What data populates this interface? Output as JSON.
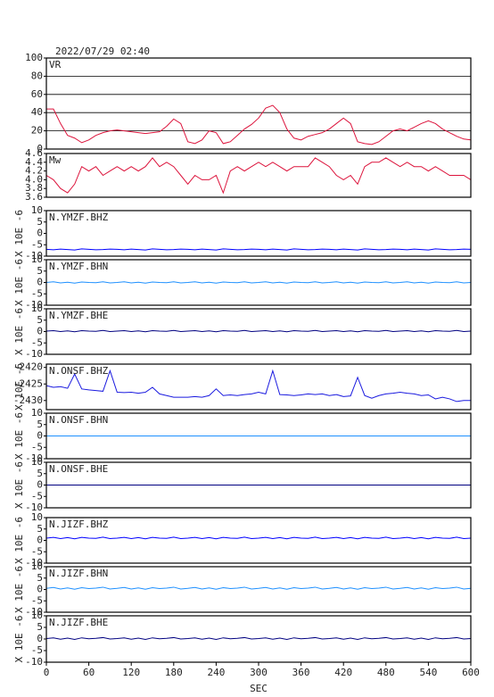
{
  "chart_data": [
    {
      "type": "line",
      "title": "2022/07/29 02:40",
      "label": "VR",
      "color": "#dc143c",
      "grid": true,
      "ylim": [
        0,
        100
      ],
      "yticks": [
        0,
        20,
        40,
        60,
        80,
        100
      ],
      "xlim": [
        0,
        600
      ],
      "x": [
        0,
        10,
        20,
        30,
        40,
        50,
        60,
        70,
        80,
        90,
        100,
        110,
        120,
        130,
        140,
        150,
        160,
        170,
        180,
        190,
        200,
        210,
        220,
        230,
        240,
        250,
        260,
        270,
        280,
        290,
        300,
        310,
        320,
        330,
        340,
        350,
        360,
        370,
        380,
        390,
        400,
        410,
        420,
        430,
        440,
        450,
        460,
        470,
        480,
        490,
        500,
        510,
        520,
        530,
        540,
        550,
        560,
        570,
        580,
        590,
        600
      ],
      "values": [
        44,
        44,
        28,
        15,
        12,
        7,
        10,
        15,
        18,
        20,
        21,
        20,
        19,
        18,
        17,
        18,
        19,
        25,
        33,
        28,
        8,
        6,
        10,
        20,
        18,
        6,
        8,
        15,
        22,
        27,
        34,
        45,
        48,
        40,
        22,
        12,
        10,
        14,
        16,
        18,
        22,
        28,
        34,
        28,
        8,
        6,
        5,
        8,
        14,
        20,
        22,
        20,
        24,
        28,
        31,
        28,
        22,
        18,
        14,
        11,
        10
      ]
    },
    {
      "type": "line",
      "label": "Mw",
      "color": "#dc143c",
      "grid": false,
      "ylim": [
        3.6,
        4.6
      ],
      "yticks": [
        3.6,
        3.8,
        {
          "value": 4,
          "label": "4.0"
        },
        4.2,
        4.4,
        4.6
      ],
      "xlim": [
        0,
        600
      ],
      "x": [
        0,
        10,
        20,
        30,
        40,
        50,
        60,
        70,
        80,
        90,
        100,
        110,
        120,
        130,
        140,
        150,
        160,
        170,
        180,
        190,
        200,
        210,
        220,
        230,
        240,
        250,
        260,
        270,
        280,
        290,
        300,
        310,
        320,
        330,
        340,
        350,
        360,
        370,
        380,
        390,
        400,
        410,
        420,
        430,
        440,
        450,
        460,
        470,
        480,
        490,
        500,
        510,
        520,
        530,
        540,
        550,
        560,
        570,
        580,
        590,
        600
      ],
      "values": [
        4.1,
        4.0,
        3.8,
        3.7,
        3.9,
        4.3,
        4.2,
        4.3,
        4.1,
        4.2,
        4.3,
        4.2,
        4.3,
        4.2,
        4.3,
        4.5,
        4.3,
        4.4,
        4.3,
        4.1,
        3.9,
        4.1,
        4.0,
        4.0,
        4.1,
        3.7,
        4.2,
        4.3,
        4.2,
        4.3,
        4.4,
        4.3,
        4.4,
        4.3,
        4.2,
        4.3,
        4.3,
        4.3,
        4.5,
        4.4,
        4.3,
        4.1,
        4.0,
        4.1,
        3.9,
        4.3,
        4.4,
        4.4,
        4.5,
        4.4,
        4.3,
        4.4,
        4.3,
        4.3,
        4.2,
        4.3,
        4.2,
        4.1,
        4.1,
        4.1,
        4.0
      ]
    },
    {
      "type": "line",
      "label": "N.YMZF.BHZ",
      "ylabel": "X 10E -6",
      "color": "#0000ff",
      "ylim": [
        -10,
        10
      ],
      "yticks": [
        -10,
        -5,
        0,
        5,
        10
      ],
      "xlim": [
        0,
        600
      ],
      "x": [
        0,
        10,
        20,
        30,
        40,
        50,
        60,
        70,
        80,
        90,
        100,
        110,
        120,
        130,
        140,
        150,
        160,
        170,
        180,
        190,
        200,
        210,
        220,
        230,
        240,
        250,
        260,
        270,
        280,
        290,
        300,
        310,
        320,
        330,
        340,
        350,
        360,
        370,
        380,
        390,
        400,
        410,
        420,
        430,
        440,
        450,
        460,
        470,
        480,
        490,
        500,
        510,
        520,
        530,
        540,
        550,
        560,
        570,
        580,
        590,
        600
      ],
      "values": [
        -7,
        -7.2,
        -6.9,
        -7.1,
        -7.3,
        -6.8,
        -7,
        -7.2,
        -7.1,
        -6.9,
        -7,
        -7.2,
        -6.9,
        -7.1,
        -7.3,
        -6.8,
        -7,
        -7.2,
        -7.1,
        -6.9,
        -7,
        -7.2,
        -6.9,
        -7.1,
        -7.3,
        -6.8,
        -7,
        -7.2,
        -7.1,
        -6.9,
        -7,
        -7.2,
        -6.9,
        -7.1,
        -7.3,
        -6.8,
        -7,
        -7.2,
        -7.1,
        -6.9,
        -7,
        -7.2,
        -6.9,
        -7.1,
        -7.3,
        -6.8,
        -7,
        -7.2,
        -7.1,
        -6.9,
        -7,
        -7.2,
        -6.9,
        -7.1,
        -7.3,
        -6.8,
        -7,
        -7.2,
        -7.1,
        -6.9,
        -7
      ]
    },
    {
      "type": "line",
      "label": "N.YMZF.BHN",
      "ylabel": "X 10E -6",
      "color": "#1e90ff",
      "ylim": [
        -10,
        10
      ],
      "yticks": [
        -10,
        -5,
        0,
        5,
        10
      ],
      "xlim": [
        0,
        600
      ],
      "x": [
        0,
        10,
        20,
        30,
        40,
        50,
        60,
        70,
        80,
        90,
        100,
        110,
        120,
        130,
        140,
        150,
        160,
        170,
        180,
        190,
        200,
        210,
        220,
        230,
        240,
        250,
        260,
        270,
        280,
        290,
        300,
        310,
        320,
        330,
        340,
        350,
        360,
        370,
        380,
        390,
        400,
        410,
        420,
        430,
        440,
        450,
        460,
        470,
        480,
        490,
        500,
        510,
        520,
        530,
        540,
        550,
        560,
        570,
        580,
        590,
        600
      ],
      "values": [
        0,
        0.3,
        -0.2,
        0.1,
        -0.3,
        0.2,
        0,
        -0.1,
        0.3,
        -0.2,
        0,
        0.3,
        -0.2,
        0.1,
        -0.3,
        0.2,
        0,
        -0.1,
        0.3,
        -0.2,
        0,
        0.3,
        -0.2,
        0.1,
        -0.3,
        0.2,
        0,
        -0.1,
        0.3,
        -0.2,
        0,
        0.3,
        -0.2,
        0.1,
        -0.3,
        0.2,
        0,
        -0.1,
        0.3,
        -0.2,
        0,
        0.3,
        -0.2,
        0.1,
        -0.3,
        0.2,
        0,
        -0.1,
        0.3,
        -0.2,
        0,
        0.3,
        -0.2,
        0.1,
        -0.3,
        0.2,
        0,
        -0.1,
        0.3,
        -0.2,
        0
      ]
    },
    {
      "type": "line",
      "label": "N.YMZF.BHE",
      "ylabel": "X 10E -6",
      "color": "#000080",
      "ylim": [
        -10,
        10
      ],
      "yticks": [
        -10,
        -5,
        0,
        5,
        10
      ],
      "xlim": [
        0,
        600
      ],
      "x": [
        0,
        10,
        20,
        30,
        40,
        50,
        60,
        70,
        80,
        90,
        100,
        110,
        120,
        130,
        140,
        150,
        160,
        170,
        180,
        190,
        200,
        210,
        220,
        230,
        240,
        250,
        260,
        270,
        280,
        290,
        300,
        310,
        320,
        330,
        340,
        350,
        360,
        370,
        380,
        390,
        400,
        410,
        420,
        430,
        440,
        450,
        460,
        470,
        480,
        490,
        500,
        510,
        520,
        530,
        540,
        550,
        560,
        570,
        580,
        590,
        600
      ],
      "values": [
        0.2,
        0.4,
        0,
        0.3,
        -0.1,
        0.4,
        0.2,
        0.1,
        0.5,
        0,
        0.2,
        0.4,
        0,
        0.3,
        -0.1,
        0.4,
        0.2,
        0.1,
        0.5,
        0,
        0.2,
        0.4,
        0,
        0.3,
        -0.1,
        0.4,
        0.2,
        0.1,
        0.5,
        0,
        0.2,
        0.4,
        0,
        0.3,
        -0.1,
        0.4,
        0.2,
        0.1,
        0.5,
        0,
        0.2,
        0.4,
        0,
        0.3,
        -0.1,
        0.4,
        0.2,
        0.1,
        0.5,
        0,
        0.2,
        0.4,
        0,
        0.3,
        -0.1,
        0.4,
        0.2,
        0.1,
        0.5,
        0,
        0.2
      ]
    },
    {
      "type": "line",
      "label": "N.ONSF.BHZ",
      "ylabel": "X 10E -6",
      "color": "#1a1adf",
      "ylim": [
        -2432.75,
        -2419
      ],
      "yticks": [
        -2430,
        -2425,
        -2420
      ],
      "xlim": [
        0,
        600
      ],
      "x": [
        0,
        10,
        20,
        30,
        40,
        50,
        60,
        70,
        80,
        90,
        100,
        110,
        120,
        130,
        140,
        150,
        160,
        170,
        180,
        190,
        200,
        210,
        220,
        230,
        240,
        250,
        260,
        270,
        280,
        290,
        300,
        310,
        320,
        330,
        340,
        350,
        360,
        370,
        380,
        390,
        400,
        410,
        420,
        430,
        440,
        450,
        460,
        470,
        480,
        490,
        500,
        510,
        520,
        530,
        540,
        550,
        560,
        570,
        580,
        590,
        600
      ],
      "values": [
        -2425.5,
        -2426,
        -2425.8,
        -2426.3,
        -2422,
        -2426.5,
        -2426.8,
        -2427,
        -2427.2,
        -2421,
        -2427.5,
        -2427.6,
        -2427.5,
        -2427.8,
        -2427.5,
        -2426,
        -2428,
        -2428.5,
        -2429,
        -2429,
        -2429,
        -2428.8,
        -2429,
        -2428.5,
        -2426.5,
        -2428.5,
        -2428.3,
        -2428.5,
        -2428.2,
        -2428,
        -2427.5,
        -2428,
        -2421,
        -2428.2,
        -2428.3,
        -2428.5,
        -2428.3,
        -2428,
        -2428.2,
        -2428,
        -2428.5,
        -2428.2,
        -2428.8,
        -2428.6,
        -2423,
        -2428.5,
        -2429.3,
        -2428.5,
        -2428,
        -2427.8,
        -2427.5,
        -2427.8,
        -2428,
        -2428.5,
        -2428.3,
        -2429.5,
        -2429,
        -2429.5,
        -2430.3,
        -2430,
        -2430
      ]
    },
    {
      "type": "line",
      "label": "N.ONSF.BHN",
      "ylabel": "X 10E -6",
      "color": "#1e90ff",
      "ylim": [
        -10,
        10
      ],
      "yticks": [
        -10,
        -5,
        0,
        5,
        10
      ],
      "xlim": [
        0,
        600
      ],
      "x": [
        0,
        600
      ],
      "values": [
        0,
        0
      ]
    },
    {
      "type": "line",
      "label": "N.ONSF.BHE",
      "ylabel": "X 10E -6",
      "color": "#000080",
      "ylim": [
        -10,
        10
      ],
      "yticks": [
        -10,
        -5,
        0,
        5,
        10
      ],
      "xlim": [
        0,
        600
      ],
      "x": [
        0,
        600
      ],
      "values": [
        0,
        0
      ]
    },
    {
      "type": "line",
      "label": "N.JIZF.BHZ",
      "ylabel": "X 10E -6",
      "color": "#0000ff",
      "ylim": [
        -10,
        10
      ],
      "yticks": [
        -10,
        -5,
        0,
        5,
        10
      ],
      "xlim": [
        0,
        600
      ],
      "x": [
        0,
        10,
        20,
        30,
        40,
        50,
        60,
        70,
        80,
        90,
        100,
        110,
        120,
        130,
        140,
        150,
        160,
        170,
        180,
        190,
        200,
        210,
        220,
        230,
        240,
        250,
        260,
        270,
        280,
        290,
        300,
        310,
        320,
        330,
        340,
        350,
        360,
        370,
        380,
        390,
        400,
        410,
        420,
        430,
        440,
        450,
        460,
        470,
        480,
        490,
        500,
        510,
        520,
        530,
        540,
        550,
        560,
        570,
        580,
        590,
        600
      ],
      "values": [
        1,
        1.3,
        0.8,
        1.2,
        0.7,
        1.3,
        1,
        0.9,
        1.4,
        0.8,
        1,
        1.3,
        0.8,
        1.2,
        0.7,
        1.3,
        1,
        0.9,
        1.4,
        0.8,
        1,
        1.3,
        0.8,
        1.2,
        0.7,
        1.3,
        1,
        0.9,
        1.4,
        0.8,
        1,
        1.3,
        0.8,
        1.2,
        0.7,
        1.3,
        1,
        0.9,
        1.4,
        0.8,
        1,
        1.3,
        0.8,
        1.2,
        0.7,
        1.3,
        1,
        0.9,
        1.4,
        0.8,
        1,
        1.3,
        0.8,
        1.2,
        0.7,
        1.3,
        1,
        0.9,
        1.4,
        0.8,
        1
      ]
    },
    {
      "type": "line",
      "label": "N.JIZF.BHN",
      "ylabel": "X 10E -6",
      "color": "#1e90ff",
      "ylim": [
        -10,
        10
      ],
      "yticks": [
        -10,
        -5,
        0,
        5,
        10
      ],
      "xlim": [
        0,
        600
      ],
      "x": [
        0,
        10,
        20,
        30,
        40,
        50,
        60,
        70,
        80,
        90,
        100,
        110,
        120,
        130,
        140,
        150,
        160,
        170,
        180,
        190,
        200,
        210,
        220,
        230,
        240,
        250,
        260,
        270,
        280,
        290,
        300,
        310,
        320,
        330,
        340,
        350,
        360,
        370,
        380,
        390,
        400,
        410,
        420,
        430,
        440,
        450,
        460,
        470,
        480,
        490,
        500,
        510,
        520,
        530,
        540,
        550,
        560,
        570,
        580,
        590,
        600
      ],
      "values": [
        0.5,
        0.9,
        0.2,
        0.7,
        0.1,
        0.8,
        0.4,
        0.6,
        1,
        0.2,
        0.5,
        0.9,
        0.2,
        0.7,
        0.1,
        0.8,
        0.4,
        0.6,
        1,
        0.2,
        0.5,
        0.9,
        0.2,
        0.7,
        0.1,
        0.8,
        0.4,
        0.6,
        1,
        0.2,
        0.5,
        0.9,
        0.2,
        0.7,
        0.1,
        0.8,
        0.4,
        0.6,
        1,
        0.2,
        0.5,
        0.9,
        0.2,
        0.7,
        0.1,
        0.8,
        0.4,
        0.6,
        1,
        0.2,
        0.5,
        0.9,
        0.2,
        0.7,
        0.1,
        0.8,
        0.4,
        0.6,
        1,
        0.2,
        0.5
      ]
    },
    {
      "type": "line",
      "label": "N.JIZF.BHE",
      "ylabel": "X 10E -6",
      "color": "#000080",
      "ylim": [
        -10,
        10
      ],
      "yticks": [
        -10,
        -5,
        0,
        5,
        10
      ],
      "xlim": [
        0,
        600
      ],
      "xticks": [
        0,
        60,
        120,
        180,
        240,
        300,
        360,
        420,
        480,
        540,
        600
      ],
      "xlabel": "SEC",
      "x": [
        0,
        10,
        20,
        30,
        40,
        50,
        60,
        70,
        80,
        90,
        100,
        110,
        120,
        130,
        140,
        150,
        160,
        170,
        180,
        190,
        200,
        210,
        220,
        230,
        240,
        250,
        260,
        270,
        280,
        290,
        300,
        310,
        320,
        330,
        340,
        350,
        360,
        370,
        380,
        390,
        400,
        410,
        420,
        430,
        440,
        450,
        460,
        470,
        480,
        490,
        500,
        510,
        520,
        530,
        540,
        550,
        560,
        570,
        580,
        590,
        600
      ],
      "values": [
        0.2,
        0.5,
        -0.1,
        0.4,
        -0.2,
        0.5,
        0.1,
        0.3,
        0.6,
        0,
        0.2,
        0.5,
        -0.1,
        0.4,
        -0.2,
        0.5,
        0.1,
        0.3,
        0.6,
        0,
        0.2,
        0.5,
        -0.1,
        0.4,
        -0.2,
        0.5,
        0.1,
        0.3,
        0.6,
        0,
        0.2,
        0.5,
        -0.1,
        0.4,
        -0.2,
        0.5,
        0.1,
        0.3,
        0.6,
        0,
        0.2,
        0.5,
        -0.1,
        0.4,
        -0.2,
        0.5,
        0.1,
        0.3,
        0.6,
        0,
        0.2,
        0.5,
        -0.1,
        0.4,
        -0.2,
        0.5,
        0.1,
        0.3,
        0.6,
        0,
        0.2
      ]
    }
  ]
}
